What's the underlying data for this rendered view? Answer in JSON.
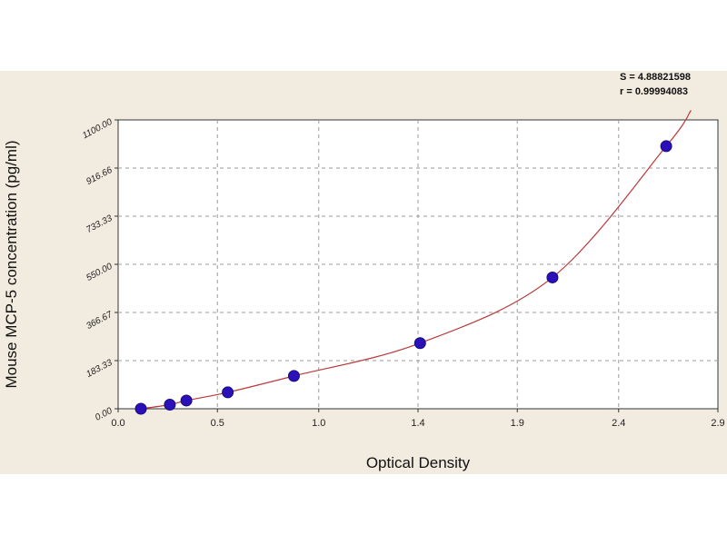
{
  "chart_data": {
    "type": "scatter",
    "xlabel": "Optical Density",
    "ylabel": "Mouse MCP-5 concentration (pg/ml)",
    "xlim": [
      0,
      2.9
    ],
    "ylim": [
      0,
      1100
    ],
    "xticks": [
      "0.0",
      "0.5",
      "1.0",
      "1.4",
      "1.9",
      "2.4",
      "2.9"
    ],
    "xtick_values": [
      0,
      0.48,
      0.97,
      1.45,
      1.93,
      2.42,
      2.9
    ],
    "yticks": [
      "0.00",
      "183.33",
      "366.67",
      "550.00",
      "733.33",
      "916.66",
      "1100.00"
    ],
    "ytick_values": [
      0,
      183.33,
      366.67,
      550,
      733.33,
      916.66,
      1100
    ],
    "grid": true,
    "stats": [
      "S = 4.88821598",
      "r = 0.99994083"
    ],
    "series": [
      {
        "kind": "points",
        "color": "#2a10b8",
        "x": [
          0.11,
          0.25,
          0.33,
          0.53,
          0.85,
          1.46,
          2.1,
          2.65
        ],
        "y": [
          0,
          15.6,
          31.25,
          62.5,
          125,
          250,
          500,
          1000
        ]
      },
      {
        "kind": "fit-curve",
        "color": "#b83a3a"
      }
    ]
  }
}
